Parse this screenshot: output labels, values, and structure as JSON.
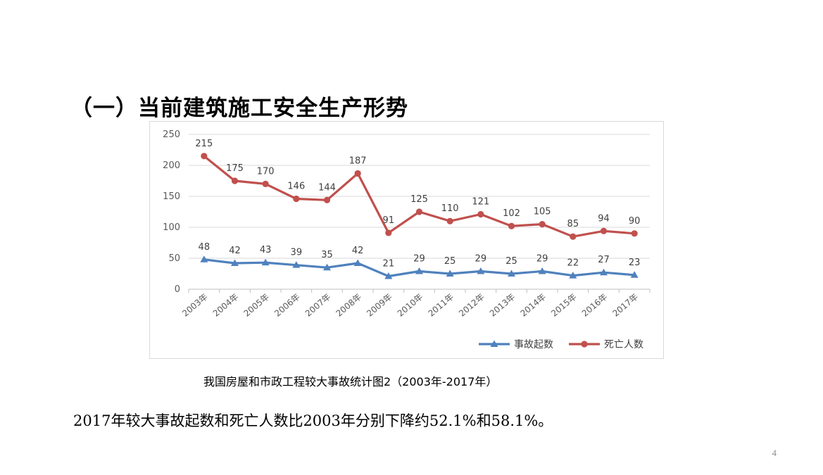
{
  "heading": "（一）当前建筑施工安全生产形势",
  "caption": "我国房屋和市政工程较大事故统计图2（2003年-2017年）",
  "summary": "2017年较大事故起数和死亡人数比2003年分别下降约52.1%和58.1%。",
  "page_number": "4",
  "chart_data": {
    "type": "line",
    "title": "",
    "xlabel": "",
    "ylabel": "",
    "ylim": [
      0,
      250
    ],
    "yticks": [
      "0",
      "50",
      "100",
      "150",
      "200",
      "250"
    ],
    "categories": [
      "2003年",
      "2004年",
      "2005年",
      "2006年",
      "2007年",
      "2008年",
      "2009年",
      "2010年",
      "2011年",
      "2012年",
      "2013年",
      "2014年",
      "2015年",
      "2016年",
      "2017年"
    ],
    "grid": true,
    "legend_position": "bottom-right",
    "series": [
      {
        "name": "事故起数",
        "color": "#4f81bd",
        "marker": "triangle",
        "values": [
          48,
          42,
          43,
          39,
          35,
          42,
          21,
          29,
          25,
          29,
          25,
          29,
          22,
          27,
          23
        ]
      },
      {
        "name": "死亡人数",
        "color": "#c0504d",
        "marker": "circle",
        "values": [
          215,
          175,
          170,
          146,
          144,
          187,
          91,
          125,
          110,
          121,
          102,
          105,
          85,
          94,
          90
        ]
      }
    ]
  }
}
